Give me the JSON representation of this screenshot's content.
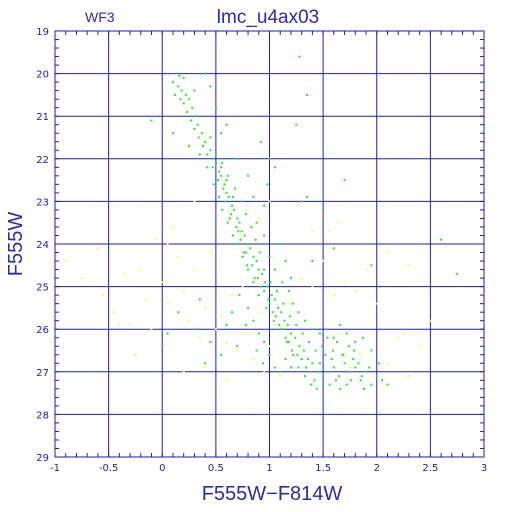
{
  "chart_data": {
    "type": "scatter",
    "title": "lmc_u4ax03",
    "subtitle": "WF3",
    "xlabel": "F555W−F814W",
    "ylabel": "F555W",
    "xlim": [
      -1,
      3
    ],
    "ylim": [
      29,
      19
    ],
    "y_inverted": true,
    "grid": true,
    "x_ticks": [
      -1,
      -0.5,
      0,
      0.5,
      1,
      1.5,
      2,
      2.5,
      3
    ],
    "x_tick_labels": [
      "-1",
      "-0.5",
      "0",
      "0.5",
      "1",
      "1.5",
      "2",
      "2.5",
      "3"
    ],
    "y_ticks": [
      19,
      20,
      21,
      22,
      23,
      24,
      25,
      26,
      27,
      28,
      29
    ],
    "y_tick_labels": [
      "19",
      "20",
      "21",
      "22",
      "23",
      "24",
      "25",
      "26",
      "27",
      "28",
      "29"
    ],
    "colors": {
      "axis": "#1a1acc",
      "grid": "#1a1acc",
      "text": "#2a2ab5",
      "green": "#22ee22",
      "yellow": "#ffff33"
    },
    "series": [
      {
        "color": "green",
        "points": [
          [
            0.13,
            20.0
          ],
          [
            0.16,
            20.05
          ],
          [
            0.2,
            20.1
          ],
          [
            0.1,
            20.2
          ],
          [
            0.15,
            20.3
          ],
          [
            0.18,
            20.4
          ],
          [
            0.12,
            20.5
          ],
          [
            0.22,
            20.5
          ],
          [
            0.25,
            20.6
          ],
          [
            0.17,
            20.6
          ],
          [
            0.2,
            20.7
          ],
          [
            0.28,
            20.8
          ],
          [
            0.23,
            20.9
          ],
          [
            0.31,
            21.0
          ],
          [
            0.27,
            21.1
          ],
          [
            0.33,
            21.2
          ],
          [
            0.3,
            21.3
          ],
          [
            0.37,
            21.4
          ],
          [
            0.34,
            21.5
          ],
          [
            0.4,
            21.6
          ],
          [
            0.38,
            21.7
          ],
          [
            0.45,
            21.8
          ],
          [
            0.42,
            21.9
          ],
          [
            0.48,
            22.0
          ],
          [
            0.5,
            22.1
          ],
          [
            0.47,
            22.2
          ],
          [
            0.53,
            22.3
          ],
          [
            0.55,
            22.4
          ],
          [
            0.52,
            22.5
          ],
          [
            0.58,
            22.6
          ],
          [
            0.57,
            22.7
          ],
          [
            0.6,
            22.8
          ],
          [
            0.62,
            22.9
          ],
          [
            0.59,
            23.0
          ],
          [
            0.65,
            23.1
          ],
          [
            0.67,
            23.2
          ],
          [
            0.64,
            23.3
          ],
          [
            0.7,
            23.4
          ],
          [
            0.72,
            23.5
          ],
          [
            0.69,
            23.6
          ],
          [
            0.74,
            23.7
          ],
          [
            0.77,
            23.8
          ],
          [
            0.73,
            23.9
          ],
          [
            0.8,
            24.0
          ],
          [
            0.82,
            24.1
          ],
          [
            0.78,
            24.2
          ],
          [
            0.85,
            24.3
          ],
          [
            0.88,
            24.4
          ],
          [
            0.84,
            24.5
          ],
          [
            0.9,
            24.6
          ],
          [
            0.93,
            24.7
          ],
          [
            0.89,
            24.8
          ],
          [
            0.96,
            24.9
          ],
          [
            0.98,
            25.0
          ],
          [
            0.95,
            25.1
          ],
          [
            1.02,
            25.2
          ],
          [
            1.05,
            25.3
          ],
          [
            1.0,
            25.4
          ],
          [
            1.08,
            25.5
          ],
          [
            1.11,
            25.6
          ],
          [
            1.06,
            25.7
          ],
          [
            1.14,
            25.8
          ],
          [
            1.17,
            25.9
          ],
          [
            1.12,
            26.0
          ],
          [
            1.2,
            26.1
          ],
          [
            1.24,
            26.2
          ],
          [
            1.18,
            26.3
          ],
          [
            1.28,
            26.4
          ],
          [
            1.32,
            26.5
          ],
          [
            1.26,
            26.6
          ],
          [
            1.36,
            26.7
          ],
          [
            1.4,
            26.8
          ],
          [
            1.34,
            26.9
          ],
          [
            1.45,
            27.0
          ],
          [
            1.5,
            27.1
          ],
          [
            1.42,
            27.2
          ],
          [
            1.55,
            27.0
          ],
          [
            1.6,
            26.9
          ],
          [
            1.65,
            27.1
          ],
          [
            1.7,
            26.8
          ],
          [
            1.75,
            27.0
          ],
          [
            1.8,
            26.9
          ],
          [
            1.85,
            27.2
          ],
          [
            1.9,
            27.0
          ],
          [
            1.95,
            27.3
          ],
          [
            2.0,
            27.1
          ],
          [
            0.55,
            22.2
          ],
          [
            0.6,
            22.5
          ],
          [
            0.66,
            22.9
          ],
          [
            0.63,
            23.4
          ],
          [
            0.71,
            23.7
          ],
          [
            0.76,
            24.2
          ],
          [
            0.79,
            24.5
          ],
          [
            0.86,
            24.8
          ],
          [
            0.92,
            25.0
          ],
          [
            0.99,
            25.3
          ],
          [
            1.03,
            25.6
          ],
          [
            1.09,
            25.9
          ],
          [
            1.15,
            26.2
          ],
          [
            1.21,
            26.5
          ],
          [
            1.3,
            26.7
          ],
          [
            1.38,
            27.0
          ],
          [
            1.47,
            26.8
          ],
          [
            1.52,
            26.6
          ],
          [
            1.58,
            26.7
          ],
          [
            1.62,
            27.2
          ],
          [
            1.68,
            26.6
          ],
          [
            1.72,
            27.3
          ],
          [
            1.78,
            26.7
          ],
          [
            1.83,
            26.8
          ],
          [
            1.88,
            27.4
          ],
          [
            1.93,
            26.9
          ],
          [
            0.45,
            21.5
          ],
          [
            0.5,
            21.9
          ],
          [
            0.56,
            22.1
          ],
          [
            0.61,
            22.4
          ],
          [
            0.68,
            22.7
          ],
          [
            0.74,
            23.0
          ],
          [
            0.78,
            23.3
          ],
          [
            0.83,
            23.6
          ],
          [
            0.87,
            23.9
          ],
          [
            0.91,
            24.2
          ],
          [
            0.95,
            24.6
          ],
          [
            1.01,
            24.9
          ],
          [
            1.07,
            25.1
          ],
          [
            1.13,
            25.4
          ],
          [
            1.19,
            25.7
          ],
          [
            1.25,
            25.9
          ],
          [
            1.31,
            26.1
          ],
          [
            1.37,
            26.3
          ],
          [
            1.43,
            26.5
          ],
          [
            1.49,
            26.4
          ],
          [
            1.54,
            26.2
          ],
          [
            1.59,
            26.5
          ],
          [
            1.63,
            26.3
          ],
          [
            1.69,
            26.6
          ],
          [
            1.74,
            26.4
          ],
          [
            1.79,
            26.5
          ],
          [
            0.35,
            21.9
          ],
          [
            0.42,
            22.2
          ],
          [
            0.48,
            22.6
          ],
          [
            0.53,
            22.9
          ],
          [
            0.56,
            23.2
          ],
          [
            0.61,
            23.5
          ],
          [
            0.66,
            23.8
          ],
          [
            0.71,
            24.0
          ],
          [
            0.75,
            24.3
          ],
          [
            0.8,
            24.6
          ],
          [
            0.85,
            24.9
          ],
          [
            0.9,
            25.2
          ],
          [
            0.97,
            25.5
          ],
          [
            1.04,
            25.8
          ],
          [
            1.1,
            26.0
          ],
          [
            1.16,
            26.3
          ],
          [
            1.22,
            26.6
          ],
          [
            1.27,
            26.9
          ],
          [
            1.33,
            27.1
          ],
          [
            1.39,
            27.3
          ],
          [
            1.44,
            27.4
          ],
          [
            1.56,
            27.3
          ],
          [
            1.66,
            27.4
          ],
          [
            1.76,
            27.2
          ],
          [
            1.86,
            27.1
          ],
          [
            0.8,
            25.5
          ],
          [
            0.85,
            25.8
          ],
          [
            0.9,
            26.1
          ],
          [
            0.95,
            26.3
          ],
          [
            1.0,
            26.6
          ],
          [
            1.05,
            26.9
          ],
          [
            1.1,
            27.0
          ],
          [
            1.15,
            26.7
          ],
          [
            1.2,
            26.9
          ],
          [
            0.72,
            25.2
          ],
          [
            0.78,
            25.9
          ],
          [
            0.7,
            26.4
          ],
          [
            0.88,
            26.5
          ],
          [
            0.94,
            26.8
          ],
          [
            0.65,
            25.6
          ],
          [
            1.05,
            24.6
          ],
          [
            1.12,
            24.9
          ],
          [
            1.18,
            25.1
          ],
          [
            1.22,
            25.4
          ],
          [
            1.27,
            25.6
          ],
          [
            1.33,
            25.8
          ],
          [
            1.4,
            26.0
          ],
          [
            1.47,
            26.1
          ],
          [
            1.53,
            26.0
          ],
          [
            1.6,
            26.2
          ],
          [
            1.66,
            25.9
          ],
          [
            1.72,
            26.1
          ],
          [
            1.8,
            26.3
          ],
          [
            1.87,
            26.2
          ],
          [
            1.95,
            26.5
          ],
          [
            2.02,
            26.8
          ],
          [
            2.05,
            27.2
          ],
          [
            2.1,
            27.3
          ],
          [
            0.95,
            23.8
          ],
          [
            1.0,
            24.3
          ],
          [
            0.88,
            23.5
          ],
          [
            1.08,
            24.0
          ],
          [
            1.15,
            24.4
          ],
          [
            0.98,
            22.6
          ],
          [
            0.92,
            21.6
          ],
          [
            1.05,
            22.2
          ],
          [
            1.3,
            23.0
          ],
          [
            1.4,
            24.4
          ],
          [
            1.5,
            23.2
          ],
          [
            1.6,
            24.1
          ],
          [
            1.25,
            21.2
          ],
          [
            1.35,
            22.9
          ],
          [
            1.2,
            24.8
          ],
          [
            0.4,
            20.0
          ],
          [
            0.3,
            20.4
          ],
          [
            0.45,
            20.3
          ],
          [
            0.5,
            20.8
          ],
          [
            0.6,
            21.2
          ],
          [
            0.25,
            21.7
          ],
          [
            0.55,
            21.4
          ],
          [
            0.7,
            22.0
          ],
          [
            0.8,
            22.4
          ],
          [
            0.85,
            22.9
          ],
          [
            0.95,
            23.1
          ],
          [
            1.0,
            22.0
          ],
          [
            1.35,
            20.5
          ],
          [
            1.5,
            21.8
          ],
          [
            1.28,
            19.6
          ],
          [
            2.6,
            23.9
          ],
          [
            2.75,
            24.7
          ],
          [
            1.7,
            22.5
          ],
          [
            1.95,
            24.5
          ],
          [
            0.1,
            21.4
          ],
          [
            -0.1,
            21.1
          ],
          [
            0.05,
            26.1
          ],
          [
            0.15,
            25.6
          ],
          [
            0.0,
            26.4
          ],
          [
            0.35,
            25.3
          ],
          [
            0.45,
            26.3
          ],
          [
            0.55,
            26.6
          ],
          [
            0.6,
            25.9
          ],
          [
            0.3,
            26.0
          ],
          [
            0.4,
            26.8
          ]
        ]
      },
      {
        "color": "yellow",
        "points": [
          [
            -0.9,
            24.4
          ],
          [
            -0.75,
            24.8
          ],
          [
            -0.6,
            24.1
          ],
          [
            -0.55,
            25.2
          ],
          [
            -0.45,
            25.6
          ],
          [
            -0.35,
            24.7
          ],
          [
            -0.3,
            25.9
          ],
          [
            -0.2,
            24.6
          ],
          [
            -0.15,
            25.3
          ],
          [
            -0.1,
            26.0
          ],
          [
            -0.05,
            23.9
          ],
          [
            0.0,
            24.9
          ],
          [
            0.05,
            25.4
          ],
          [
            0.1,
            23.6
          ],
          [
            0.15,
            24.3
          ],
          [
            0.2,
            25.1
          ],
          [
            0.25,
            25.8
          ],
          [
            0.3,
            24.6
          ],
          [
            0.35,
            26.2
          ],
          [
            0.4,
            25.5
          ],
          [
            0.45,
            24.2
          ],
          [
            0.5,
            26.0
          ],
          [
            0.55,
            25.7
          ],
          [
            0.6,
            26.3
          ],
          [
            0.65,
            25.2
          ],
          [
            0.7,
            26.5
          ],
          [
            0.75,
            25.0
          ],
          [
            0.8,
            26.1
          ],
          [
            0.85,
            26.7
          ],
          [
            0.9,
            25.6
          ],
          [
            0.95,
            27.0
          ],
          [
            1.0,
            26.4
          ],
          [
            1.05,
            25.9
          ],
          [
            1.1,
            27.1
          ],
          [
            1.2,
            25.4
          ],
          [
            1.3,
            24.8
          ],
          [
            1.4,
            25.0
          ],
          [
            1.5,
            24.4
          ],
          [
            1.6,
            25.2
          ],
          [
            1.7,
            24.9
          ],
          [
            1.8,
            25.1
          ],
          [
            1.9,
            24.6
          ],
          [
            2.0,
            25.4
          ],
          [
            2.1,
            24.2
          ],
          [
            2.2,
            26.2
          ],
          [
            2.3,
            27.1
          ],
          [
            2.4,
            26.4
          ],
          [
            2.5,
            25.8
          ],
          [
            1.55,
            23.7
          ],
          [
            1.65,
            23.5
          ],
          [
            -0.4,
            25.9
          ],
          [
            -0.25,
            26.6
          ],
          [
            0.2,
            27.0
          ],
          [
            0.4,
            26.9
          ],
          [
            0.6,
            27.2
          ],
          [
            1.75,
            26.9
          ],
          [
            1.85,
            26.6
          ],
          [
            2.1,
            26.8
          ],
          [
            2.25,
            26.1
          ],
          [
            0.9,
            23.4
          ],
          [
            0.05,
            24.0
          ],
          [
            0.3,
            23.0
          ],
          [
            1.0,
            23.0
          ],
          [
            1.4,
            23.7
          ],
          [
            2.3,
            24.5
          ]
        ]
      }
    ]
  }
}
